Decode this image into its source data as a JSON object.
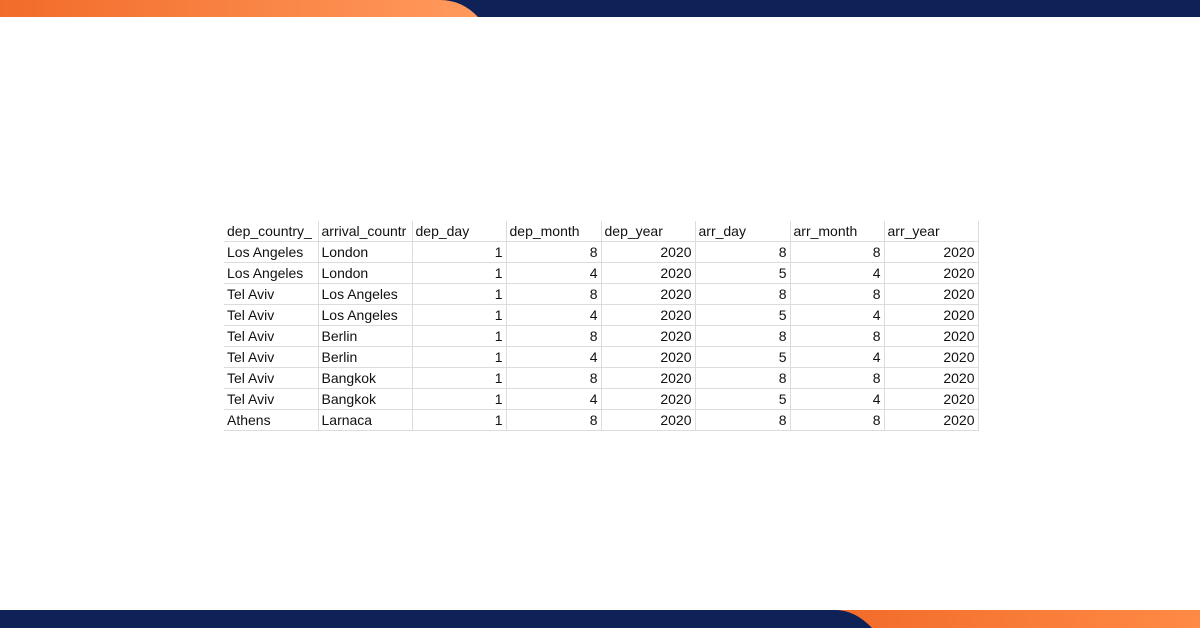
{
  "theme": {
    "orange": "#f26b2a",
    "orange_light": "#ff9a5c",
    "navy": "#0f2257",
    "grid_line": "#dcdcdc"
  },
  "sheet": {
    "columns": [
      "dep_country_",
      "arrival_countr",
      "dep_day",
      "dep_month",
      "dep_year",
      "arr_day",
      "arr_month",
      "arr_year"
    ],
    "column_types": [
      "text",
      "text",
      "number",
      "number",
      "number",
      "number",
      "number",
      "number"
    ],
    "rows": [
      [
        "Los Angeles",
        "London",
        "1",
        "8",
        "2020",
        "8",
        "8",
        "2020"
      ],
      [
        "Los Angeles",
        "London",
        "1",
        "4",
        "2020",
        "5",
        "4",
        "2020"
      ],
      [
        "Tel Aviv",
        "Los Angeles",
        "1",
        "8",
        "2020",
        "8",
        "8",
        "2020"
      ],
      [
        "Tel Aviv",
        "Los Angeles",
        "1",
        "4",
        "2020",
        "5",
        "4",
        "2020"
      ],
      [
        "Tel Aviv",
        "Berlin",
        "1",
        "8",
        "2020",
        "8",
        "8",
        "2020"
      ],
      [
        "Tel Aviv",
        "Berlin",
        "1",
        "4",
        "2020",
        "5",
        "4",
        "2020"
      ],
      [
        "Tel Aviv",
        "Bangkok",
        "1",
        "8",
        "2020",
        "8",
        "8",
        "2020"
      ],
      [
        "Tel Aviv",
        "Bangkok",
        "1",
        "4",
        "2020",
        "5",
        "4",
        "2020"
      ],
      [
        "Athens",
        "Larnaca",
        "1",
        "8",
        "2020",
        "8",
        "8",
        "2020"
      ]
    ]
  }
}
